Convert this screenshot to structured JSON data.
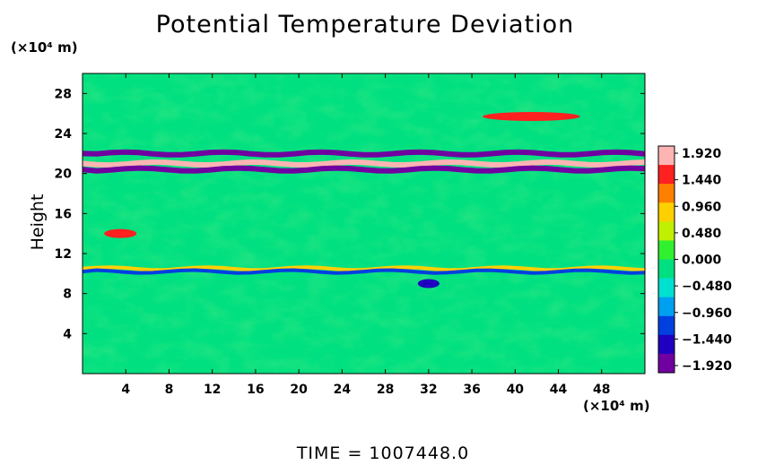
{
  "chart_data": {
    "type": "heatmap",
    "title": "Potential Temperature Deviation",
    "ylabel": "Height",
    "xlabel": "",
    "x_unit_label": "(×10⁴ m)",
    "y_unit_label": "(×10⁴ m)",
    "xlim": [
      0,
      52
    ],
    "ylim": [
      0,
      30
    ],
    "x_ticks": [
      4,
      8,
      12,
      16,
      20,
      24,
      28,
      32,
      36,
      40,
      44,
      48
    ],
    "y_ticks": [
      4,
      8,
      12,
      16,
      20,
      24,
      28
    ],
    "colorbar": {
      "labels": [
        "1.920",
        "1.440",
        "0.960",
        "0.480",
        "0.000",
        "−0.480",
        "−0.960",
        "−1.440",
        "−1.920"
      ],
      "values": [
        1.92,
        1.44,
        0.96,
        0.48,
        0.0,
        -0.48,
        -0.96,
        -1.44,
        -1.92
      ],
      "colors": [
        "#ffb4b4",
        "#ff2020",
        "#ff8000",
        "#ffd000",
        "#c0f000",
        "#30f030",
        "#00e080",
        "#00e0d0",
        "#00a0f0",
        "#0040e0",
        "#2000c0",
        "#7000a0"
      ]
    },
    "background_value": 0.0,
    "features": [
      {
        "kind": "band",
        "y": 21.0,
        "x_range": [
          0,
          52
        ],
        "value": 1.92
      },
      {
        "kind": "band",
        "y": 20.4,
        "x_range": [
          0,
          52
        ],
        "value": -1.92
      },
      {
        "kind": "band",
        "y": 22.0,
        "x_range": [
          0,
          52
        ],
        "value": -1.92
      },
      {
        "kind": "band",
        "y": 10.5,
        "x_range": [
          0,
          52
        ],
        "value": 0.96
      },
      {
        "kind": "band",
        "y": 10.2,
        "x_range": [
          0,
          52
        ],
        "value": -0.96
      },
      {
        "kind": "blob",
        "y": 25.7,
        "x_range": [
          37,
          46
        ],
        "value": 1.44
      },
      {
        "kind": "blob",
        "y": 14.0,
        "x_range": [
          2,
          5
        ],
        "value": 1.44
      },
      {
        "kind": "blob",
        "y": 9.0,
        "x_range": [
          31,
          33
        ],
        "value": -1.44
      }
    ]
  },
  "time_label": "TIME  =  1007448.0"
}
